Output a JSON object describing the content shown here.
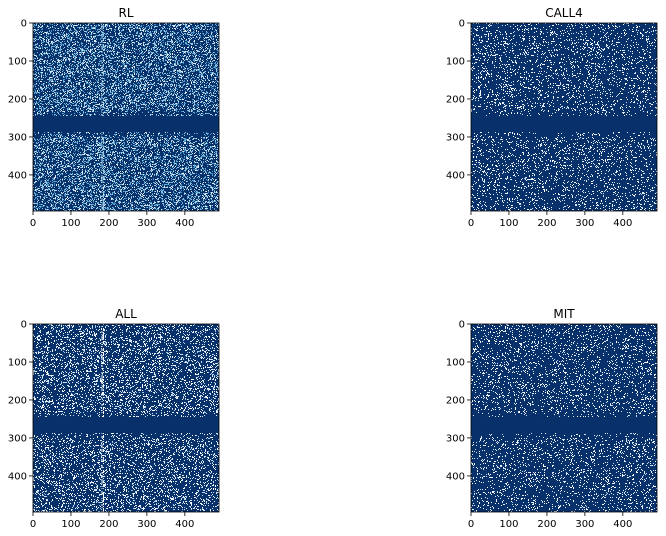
{
  "chart_data": [
    {
      "type": "heatmap",
      "title": "RL",
      "xticks": [
        0,
        100,
        200,
        300,
        400
      ],
      "yticks": [
        0,
        100,
        200,
        300,
        400
      ],
      "xlim": [
        0,
        490
      ],
      "ylim": [
        495,
        0
      ],
      "band_rows": [
        245,
        285
      ],
      "column_lines": [
        180,
        185
      ],
      "density": 0.36,
      "colormap": {
        "background": "#08306b",
        "dot_colors": [
          "#deebf7",
          "#9ecae1",
          "#6baed6",
          "#4292c6"
        ]
      }
    },
    {
      "type": "heatmap",
      "title": "CALL4",
      "xticks": [
        0,
        100,
        200,
        300,
        400
      ],
      "yticks": [
        0,
        100,
        200,
        300,
        400
      ],
      "xlim": [
        0,
        490
      ],
      "ylim": [
        495,
        0
      ],
      "band_rows": [
        245,
        285
      ],
      "column_lines": [],
      "density": 0.13,
      "colormap": {
        "background": "#08306b",
        "dot_colors": [
          "#ffffff",
          "#f7fbff",
          "#deebf7",
          "#c6dbef"
        ]
      }
    },
    {
      "type": "heatmap",
      "title": "ALL",
      "xticks": [
        0,
        100,
        200,
        300,
        400
      ],
      "yticks": [
        0,
        100,
        200,
        300,
        400
      ],
      "xlim": [
        0,
        490
      ],
      "ylim": [
        495,
        0
      ],
      "band_rows": [
        245,
        285
      ],
      "column_lines": [
        180,
        185
      ],
      "density": 0.22,
      "colormap": {
        "background": "#08306b",
        "dot_colors": [
          "#ffffff",
          "#f7fbff",
          "#deebf7",
          "#c6dbef",
          "#9ecae1"
        ]
      }
    },
    {
      "type": "heatmap",
      "title": "MIT",
      "xticks": [
        0,
        100,
        200,
        300,
        400
      ],
      "yticks": [
        0,
        100,
        200,
        300,
        400
      ],
      "xlim": [
        0,
        490
      ],
      "ylim": [
        495,
        0
      ],
      "band_rows": [
        245,
        285
      ],
      "column_lines": [],
      "density": 0.13,
      "colormap": {
        "background": "#08306b",
        "dot_colors": [
          "#ffffff",
          "#f7fbff",
          "#deebf7",
          "#c6dbef"
        ]
      }
    }
  ]
}
